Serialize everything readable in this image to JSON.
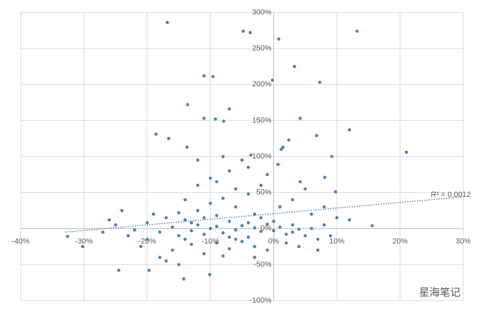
{
  "chart_data": {
    "type": "scatter",
    "xlim": [
      -40,
      30
    ],
    "ylim": [
      -100,
      300
    ],
    "xticks": [
      {
        "value": -40,
        "label": "-40%"
      },
      {
        "value": -30,
        "label": "-30%"
      },
      {
        "value": -20,
        "label": "-20%"
      },
      {
        "value": -10,
        "label": "-10%"
      },
      {
        "value": 0,
        "label": "0%"
      },
      {
        "value": 10,
        "label": "10%"
      },
      {
        "value": 20,
        "label": "20%"
      },
      {
        "value": 30,
        "label": "30%"
      }
    ],
    "yticks": [
      {
        "value": -100,
        "label": "-100%"
      },
      {
        "value": -50,
        "label": "-50%"
      },
      {
        "value": 0,
        "label": "0%"
      },
      {
        "value": 50,
        "label": "50%"
      },
      {
        "value": 100,
        "label": "100%"
      },
      {
        "value": 150,
        "label": "150%"
      },
      {
        "value": 200,
        "label": "200%"
      },
      {
        "value": 250,
        "label": "250%"
      },
      {
        "value": 300,
        "label": "300%"
      }
    ],
    "grid": true,
    "series": [
      {
        "color": "#4a7ebb",
        "x": [
          -16.8,
          -4.8,
          -3.7,
          0.8,
          13.2,
          3.3,
          -11,
          -9.6,
          -0.2,
          7.3,
          -13.6,
          -7,
          -11,
          -9.2,
          -7.9,
          4.2,
          12,
          -18.6,
          -16.6,
          6.8,
          21,
          -13.7,
          2.4,
          9.2,
          1.5,
          1.2,
          -3.6,
          0.7,
          9.8,
          15.6,
          8.1,
          4.2,
          -32.6,
          -30.2,
          -24.5,
          -19.7,
          -14.2,
          -10.1,
          -25,
          -22,
          -20,
          -18,
          -16,
          -15,
          -14,
          -13,
          -12,
          -11,
          -10,
          -9,
          -8,
          -7,
          -6,
          -5,
          -4,
          -3,
          -2,
          -1,
          0,
          1,
          2,
          3,
          4,
          5,
          6,
          8,
          -12,
          -10,
          -8,
          -6,
          -4,
          -3,
          -9,
          -7,
          -5,
          -13,
          -16,
          -18,
          -11,
          -3,
          2,
          4,
          -20,
          -23,
          -26,
          -24,
          -19,
          -17,
          -14,
          -12,
          -10,
          -7,
          -5,
          -8,
          -6,
          -2,
          1,
          3,
          5,
          -1,
          7,
          9,
          6,
          10,
          -15,
          -21,
          -27,
          -11,
          -9,
          -7,
          -4,
          -2,
          0,
          -13,
          -14,
          -6,
          3,
          -8,
          -17,
          -15,
          7,
          8,
          12,
          -1,
          -12,
          -9,
          -4,
          -3
        ],
        "values": [
          286,
          274,
          272,
          263,
          274,
          225,
          212,
          211,
          206,
          203,
          172,
          166,
          153,
          152,
          149,
          153,
          137,
          131,
          125,
          129,
          106,
          113,
          123,
          100,
          113,
          110,
          102,
          89,
          51,
          4,
          71,
          65,
          -11,
          -25,
          -58,
          -58,
          -70,
          -64,
          5,
          -2,
          8,
          -5,
          2,
          -10,
          12,
          -3,
          5,
          -8,
          0,
          3,
          -6,
          10,
          -2,
          4,
          -12,
          1,
          -4,
          6,
          -3,
          2,
          -8,
          5,
          -1,
          -10,
          0,
          5,
          25,
          35,
          42,
          30,
          48,
          20,
          -20,
          -28,
          -18,
          -22,
          -30,
          -40,
          -35,
          -40,
          -20,
          -25,
          -15,
          -10,
          12,
          25,
          20,
          15,
          40,
          60,
          70,
          80,
          95,
          100,
          55,
          60,
          30,
          40,
          55,
          -30,
          -15,
          -10,
          20,
          15,
          22,
          -25,
          -5,
          15,
          18,
          -12,
          8,
          15,
          10,
          8,
          -15,
          -15,
          -5,
          -38,
          -45,
          -50,
          -30,
          30,
          12,
          75,
          95,
          65,
          85,
          -25
        ]
      }
    ],
    "trendline": {
      "label": "R² = 0.0012",
      "x": [
        -33,
        30
      ],
      "values": [
        -5,
        44
      ]
    },
    "watermark": "星海笔记"
  }
}
